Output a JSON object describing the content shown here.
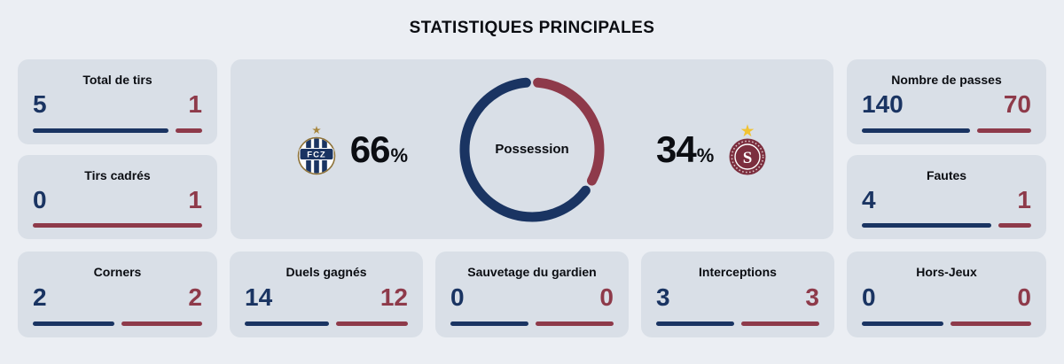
{
  "title": "STATISTIQUES PRINCIPALES",
  "teams": {
    "home": {
      "name": "FCZ",
      "badge_text": "FCZ",
      "color": "#1a3462",
      "star_color": "#a8873f"
    },
    "away": {
      "name": "Servette FC",
      "badge_text": "S",
      "color": "#8e3a4a",
      "star_color": "#f1c232"
    }
  },
  "possession": {
    "label": "Possession",
    "home_pct": 66,
    "away_pct": 34,
    "pct_symbol": "%"
  },
  "stats": [
    {
      "label": "Total de tirs",
      "home": 5,
      "away": 1
    },
    {
      "label": "Tirs cadrés",
      "home": 0,
      "away": 1
    },
    {
      "label": "Nombre de passes",
      "home": 140,
      "away": 70
    },
    {
      "label": "Fautes",
      "home": 4,
      "away": 1
    },
    {
      "label": "Corners",
      "home": 2,
      "away": 2
    },
    {
      "label": "Duels gagnés",
      "home": 14,
      "away": 12
    },
    {
      "label": "Sauvetage du gardien",
      "home": 0,
      "away": 0
    },
    {
      "label": "Interceptions",
      "home": 3,
      "away": 3
    },
    {
      "label": "Hors-Jeux",
      "home": 0,
      "away": 0
    }
  ],
  "chart_data": [
    {
      "type": "pie",
      "style": "donut-with-center-label",
      "title": "Possession",
      "labels": [
        "FCZ",
        "Servette FC"
      ],
      "values": [
        66,
        34
      ],
      "unit": "%",
      "colors": [
        "#1a3462",
        "#8e3a4a"
      ],
      "legend_position": "sides-with-team-badges"
    },
    {
      "type": "bar",
      "style": "paired-proportional-bars-per-stat-card",
      "title": "STATISTIQUES PRINCIPALES",
      "categories": [
        "Total de tirs",
        "Tirs cadrés",
        "Nombre de passes",
        "Fautes",
        "Corners",
        "Duels gagnés",
        "Sauvetage du gardien",
        "Interceptions",
        "Hors-Jeux"
      ],
      "series": [
        {
          "name": "FCZ",
          "color": "#1a3462",
          "values": [
            5,
            0,
            140,
            4,
            2,
            14,
            0,
            3,
            0
          ]
        },
        {
          "name": "Servette FC",
          "color": "#8e3a4a",
          "values": [
            1,
            1,
            70,
            1,
            2,
            12,
            0,
            3,
            0
          ]
        }
      ]
    }
  ]
}
